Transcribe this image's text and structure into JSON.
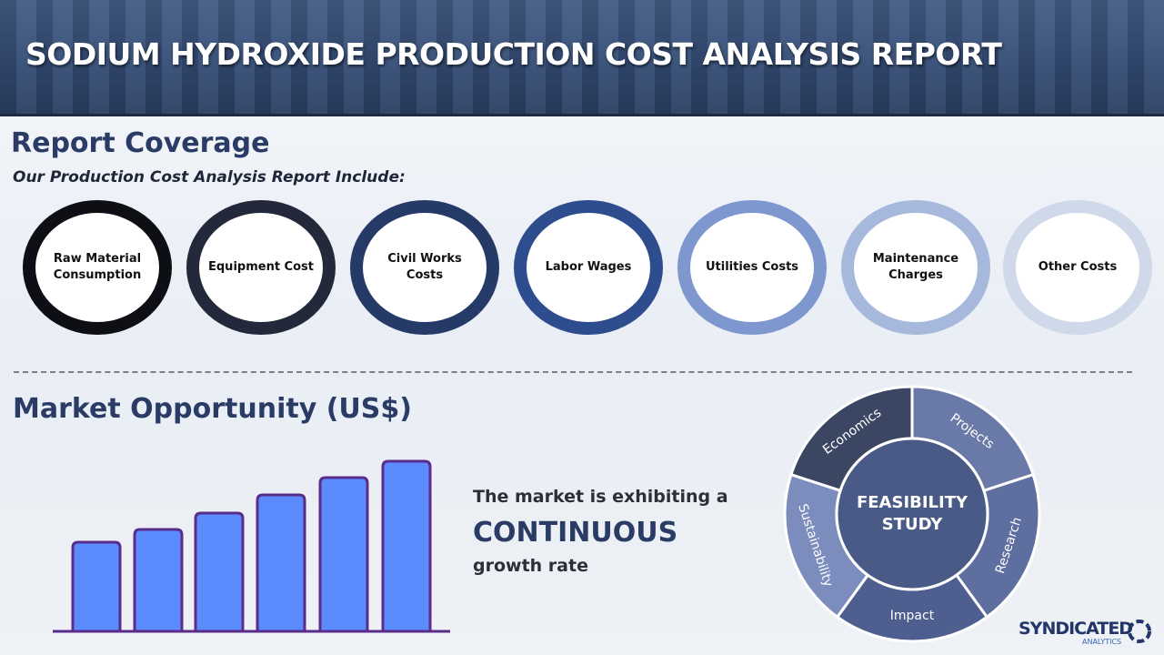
{
  "header": {
    "title": "SODIUM HYDROXIDE PRODUCTION COST ANALYSIS REPORT"
  },
  "coverage": {
    "heading": "Report Coverage",
    "subheading": "Our Production  Cost Analysis Report Include:",
    "items": [
      "Raw Material Consumption",
      "Equipment Cost",
      "Civil Works Costs",
      "Labor Wages",
      "Utilities Costs",
      "Maintenance Charges",
      "Other Costs"
    ]
  },
  "market": {
    "heading": "Market Opportunity (US$)",
    "text_lead": "The market is exhibiting a",
    "text_emphasis": "CONTINUOUS",
    "text_tail": "growth rate"
  },
  "feasibility": {
    "center": "FEASIBILITY STUDY",
    "segments": [
      "Economics",
      "Projects",
      "Research",
      "Impact",
      "Sustainability"
    ]
  },
  "logo": {
    "name": "SYNDICATED",
    "tagline": "ANALYTICS"
  }
}
